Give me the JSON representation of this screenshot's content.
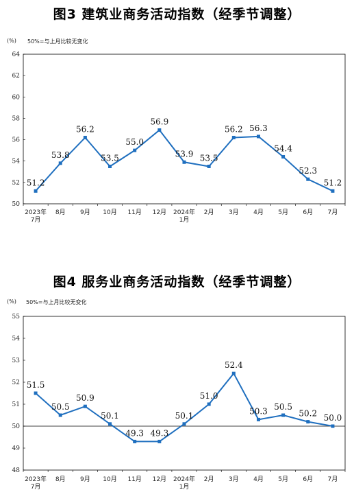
{
  "chart_data": [
    {
      "type": "line",
      "title": "图3  建筑业商务活动指数（经季节调整）",
      "unit": "(%)",
      "note": "50%=与上月比较无变化",
      "categories": [
        "2023年\n7月",
        "8月",
        "9月",
        "10月",
        "11月",
        "12月",
        "2024年\n1月",
        "2月",
        "3月",
        "4月",
        "5月",
        "6月",
        "7月"
      ],
      "values": [
        51.2,
        53.8,
        56.2,
        53.5,
        55.0,
        56.9,
        53.9,
        53.5,
        56.2,
        56.3,
        54.4,
        52.3,
        51.2
      ],
      "labels": [
        "51.2",
        "53.8",
        "56.2",
        "53.5",
        "55.0",
        "56.9",
        "53.9",
        "53.5",
        "56.2",
        "56.3",
        "54.4",
        "52.3",
        "51.2"
      ],
      "ylim": [
        50,
        64
      ],
      "yticks": [
        50,
        52,
        54,
        56,
        58,
        60,
        62,
        64
      ],
      "reference_line": null,
      "color": "#1f6fbf"
    },
    {
      "type": "line",
      "title": "图4  服务业商务活动指数（经季节调整）",
      "unit": "(%)",
      "note": "50%=与上月比较无变化",
      "categories": [
        "2023年\n7月",
        "8月",
        "9月",
        "10月",
        "11月",
        "12月",
        "2024年\n1月",
        "2月",
        "3月",
        "4月",
        "5月",
        "6月",
        "7月"
      ],
      "values": [
        51.5,
        50.5,
        50.9,
        50.1,
        49.3,
        49.3,
        50.1,
        51.0,
        52.4,
        50.3,
        50.5,
        50.2,
        50.0
      ],
      "labels": [
        "51.5",
        "50.5",
        "50.9",
        "50.1",
        "49.3",
        "49.3",
        "50.1",
        "51.0",
        "52.4",
        "50.3",
        "50.5",
        "50.2",
        "50.0"
      ],
      "ylim": [
        48,
        55
      ],
      "yticks": [
        48,
        49,
        50,
        51,
        52,
        53,
        54,
        55
      ],
      "reference_line": 50,
      "color": "#1f6fbf"
    }
  ]
}
